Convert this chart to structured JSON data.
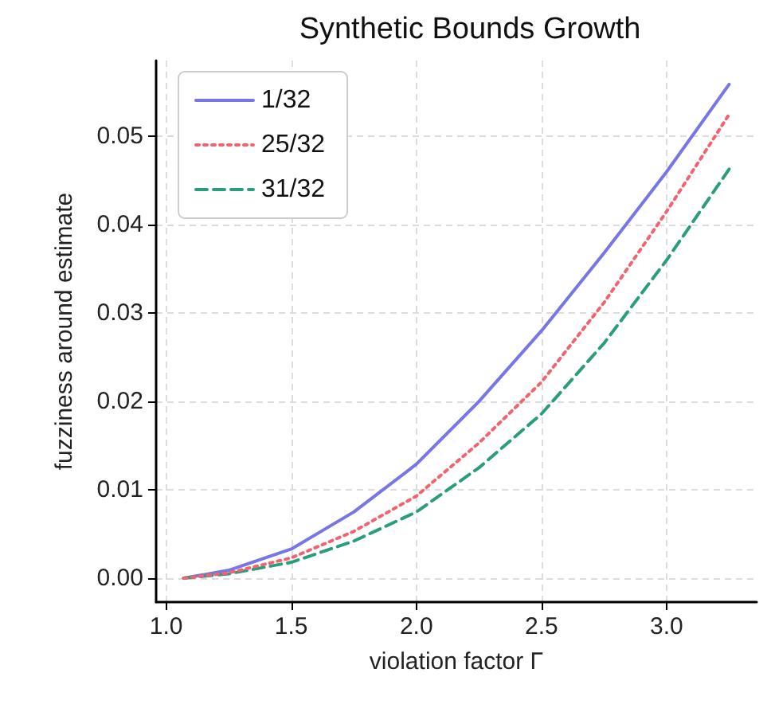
{
  "chart_data": {
    "type": "line",
    "title": "Synthetic Bounds Growth",
    "xlabel": "violation factor Γ",
    "ylabel": "fuzziness around estimate",
    "x": [
      1.07,
      1.25,
      1.5,
      1.75,
      2,
      2.25,
      2.5,
      2.75,
      3,
      3.25
    ],
    "series": [
      {
        "name": "1/32",
        "color": "#7676e4",
        "line_style": "solid",
        "values": [
          0,
          0.0009,
          0.0033,
          0.0075,
          0.0129,
          0.02,
          0.028,
          0.0368,
          0.046,
          0.0559
        ]
      },
      {
        "name": "25/32",
        "color": "#f2636f",
        "line_style": "dotted",
        "values": [
          0,
          0.0006,
          0.0023,
          0.0053,
          0.0093,
          0.0153,
          0.0222,
          0.0312,
          0.0415,
          0.0525
        ]
      },
      {
        "name": "31/32",
        "color": "#2a9d7c",
        "line_style": "dashed",
        "values": [
          0,
          0.0005,
          0.0018,
          0.0042,
          0.0075,
          0.0125,
          0.0186,
          0.0266,
          0.036,
          0.0463
        ]
      }
    ],
    "xlim": [
      0.96,
      3.36
    ],
    "ylim": [
      -0.0027,
      0.0586
    ],
    "xticks": [
      {
        "value": 1,
        "label": "1.0"
      },
      {
        "value": 1.5,
        "label": "1.5"
      },
      {
        "value": 2,
        "label": "2.0"
      },
      {
        "value": 2.5,
        "label": "2.5"
      },
      {
        "value": 3,
        "label": "3.0"
      }
    ],
    "yticks": [
      {
        "value": 0,
        "label": "0.00"
      },
      {
        "value": 0.01,
        "label": "0.01"
      },
      {
        "value": 0.02,
        "label": "0.02"
      },
      {
        "value": 0.03,
        "label": "0.03"
      },
      {
        "value": 0.04,
        "label": "0.04"
      },
      {
        "value": 0.05,
        "label": "0.05"
      }
    ],
    "grid": true,
    "legend": "top left",
    "marker": "none"
  }
}
